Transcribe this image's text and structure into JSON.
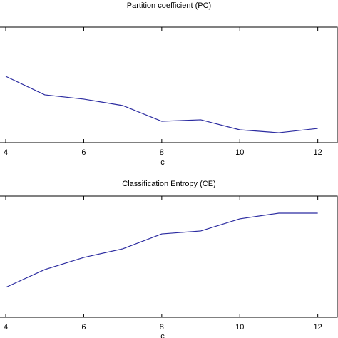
{
  "chart_data": [
    {
      "type": "line",
      "title": "Partition coefficient (PC)",
      "xlabel": "c",
      "x": [
        4,
        5,
        6,
        7,
        8,
        9,
        10,
        11,
        12
      ],
      "series": [
        {
          "color": "#2b2ba0",
          "values": [
            0.574,
            0.414,
            0.377,
            0.321,
            0.185,
            0.198,
            0.111,
            0.086,
            0.123
          ]
        }
      ],
      "xlim": [
        3.853,
        12.5
      ],
      "xticks": [
        4,
        6,
        8,
        10,
        12
      ],
      "ylim": [
        0,
        1
      ]
    },
    {
      "type": "line",
      "title": "Classification Entropy (CE)",
      "xlabel": "c",
      "x": [
        4,
        5,
        6,
        7,
        8,
        9,
        10,
        11,
        12
      ],
      "series": [
        {
          "color": "#2b2ba0",
          "values": [
            0.247,
            0.394,
            0.494,
            0.565,
            0.688,
            0.712,
            0.812,
            0.859,
            0.859
          ]
        }
      ],
      "xlim": [
        3.853,
        12.5
      ],
      "xticks": [
        4,
        6,
        8,
        10,
        12
      ],
      "ylim": [
        0,
        1
      ]
    }
  ]
}
